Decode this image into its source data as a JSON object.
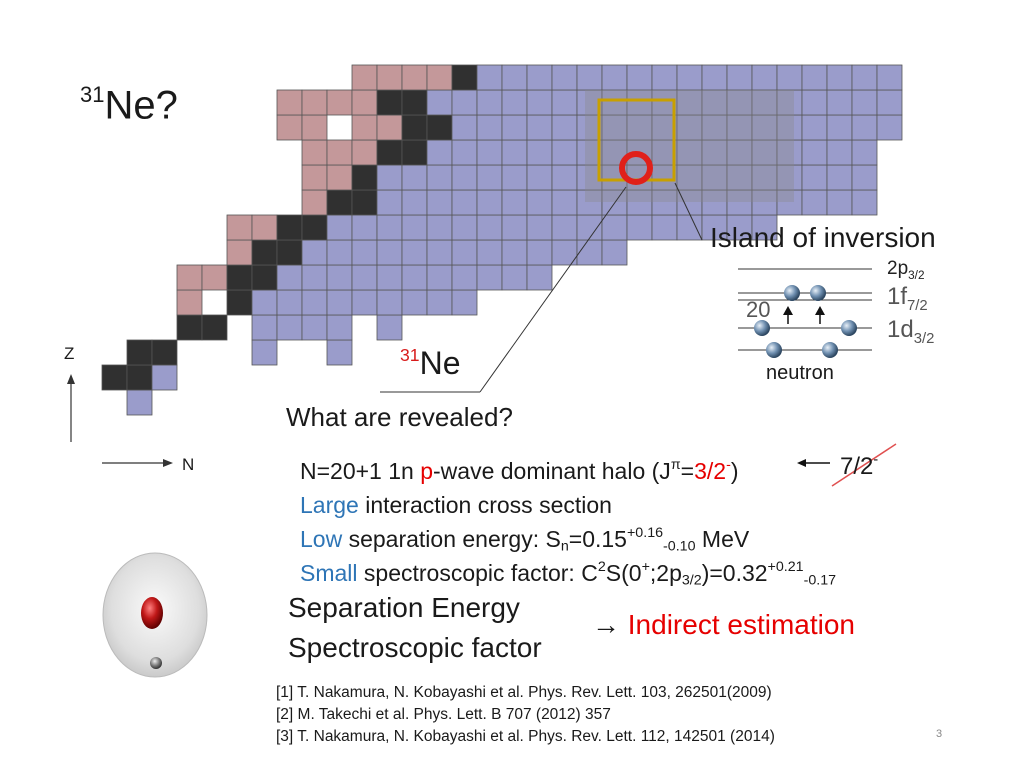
{
  "title": {
    "sup": "31",
    "main": "Ne?"
  },
  "axes": {
    "z": "Z",
    "n": "N"
  },
  "nucleus_label": {
    "sup": "31",
    "main": "Ne"
  },
  "island_label": "Island of inversion",
  "levels": {
    "magic_number": "20",
    "p32": {
      "main": "2p",
      "sub": "3/2"
    },
    "f72": {
      "main": "1f",
      "sub": "7/2"
    },
    "d32": {
      "main": "1d",
      "sub": "3/2"
    },
    "caption": "neutron"
  },
  "question": "What are revealed?",
  "findings": {
    "l1": {
      "a": "N=20+1 1n ",
      "p": "p",
      "b": "-wave dominant halo (J",
      "pi": "π",
      "eq": "=",
      "jval": "3/2",
      "jsup": "-",
      "close": ")"
    },
    "l2": {
      "word": "Large",
      "rest": " interaction cross section"
    },
    "l3": {
      "word": "Low",
      "rest": " separation energy: S",
      "sub": "n",
      "val": "=0.15",
      "up": "+0.16",
      "down": "-0.10",
      "unit": " MeV"
    },
    "l4": {
      "word": "Small",
      "rest": " spectroscopic factor: C",
      "two": "2",
      "s": "S(0",
      "plus": "+",
      "semi": ";2p",
      "sub": "3/2",
      "val": ")=0.32",
      "up": "+0.21",
      "down": "-0.17"
    }
  },
  "crossed": {
    "main": "7/2",
    "sup": "-"
  },
  "methods": {
    "sep": "Separation Energy",
    "spec": "Spectroscopic factor"
  },
  "conclusion": {
    "arrow": "→",
    "text": " Indirect estimation"
  },
  "references": [
    "[1] T. Nakamura, N. Kobayashi et al. Phys. Rev. Lett. 103, 262501(2009)",
    "[2] M. Takechi et al. Phys. Lett. B 707 (2012) 357",
    "[3] T. Nakamura, N. Kobayashi et al. Phys. Rev. Lett. 112, 142501 (2014)"
  ],
  "page_number": "3",
  "colors": {
    "stable": "#303030",
    "proton_rich": "#c4989a",
    "neutron_rich": "#9a9ccb",
    "highlight": "#d81b1b",
    "frame": "#c8a000"
  }
}
